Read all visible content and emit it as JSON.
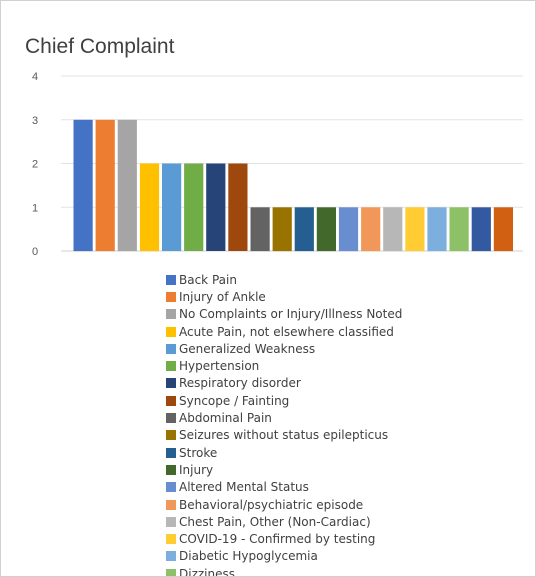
{
  "chart_data": {
    "type": "bar",
    "title": "Chief Complaint",
    "xlabel": "",
    "ylabel": "",
    "ylim": [
      0,
      4
    ],
    "yticks": [
      0,
      1,
      2,
      3,
      4
    ],
    "grid": true,
    "legend_position": "bottom",
    "categories": [
      "Back Pain",
      "Injury of Ankle",
      "No Complaints or Injury/Illness Noted",
      "Acute Pain, not elsewhere classified",
      "Generalized Weakness",
      "Hypertension",
      "Respiratory disorder",
      "Syncope / Fainting",
      "Abdominal Pain",
      "Seizures without status epilepticus",
      "Stroke",
      "Injury",
      "Altered Mental Status",
      "Behavioral/psychiatric episode",
      "Chest Pain, Other (Non-Cardiac)",
      "COVID-19 - Confirmed by testing",
      "Diabetic Hypoglycemia",
      "Dizziness",
      "",
      ""
    ],
    "values": [
      3,
      3,
      3,
      2,
      2,
      2,
      2,
      2,
      1,
      1,
      1,
      1,
      1,
      1,
      1,
      1,
      1,
      1,
      1,
      1
    ],
    "colors": [
      "#4472c4",
      "#ed7d31",
      "#a5a5a5",
      "#ffc000",
      "#5b9bd5",
      "#70ad47",
      "#264478",
      "#9e480e",
      "#636363",
      "#997300",
      "#255e91",
      "#43682b",
      "#698ed0",
      "#f1975a",
      "#b7b7b7",
      "#ffcd33",
      "#7cafdd",
      "#8cc168",
      "#335aa1",
      "#d26012"
    ]
  }
}
